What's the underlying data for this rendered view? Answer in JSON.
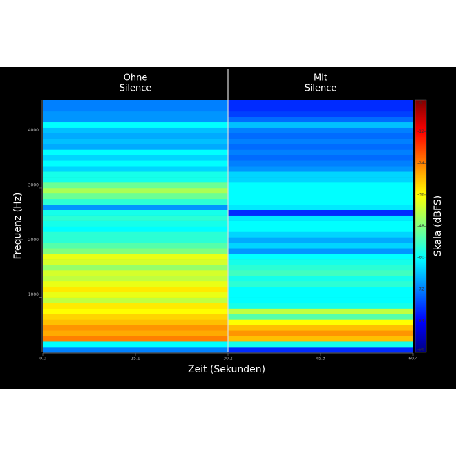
{
  "chart_data": {
    "type": "spectrogram",
    "x_label": "Zeit (Sekunden)",
    "y_label": "Frequenz (Hz)",
    "xlim": [
      0,
      60.4
    ],
    "xticks": [
      {
        "value": 0,
        "label": "0.0"
      },
      15.1,
      30.2,
      45.3,
      60.4
    ],
    "ylim": [
      0,
      4600
    ],
    "yticks": [
      1000,
      2000,
      3000,
      4000
    ],
    "bins": [
      0,
      100,
      200,
      300,
      400,
      500,
      600,
      700,
      800,
      900,
      1000,
      1100,
      1200,
      1300,
      1400,
      1500,
      1600,
      1700,
      1800,
      1900,
      2000,
      2100,
      2200,
      2300,
      2400,
      2500,
      2600,
      2700,
      2800,
      2900,
      3000,
      3100,
      3200,
      3300,
      3400,
      3500,
      3600,
      3700,
      3800,
      3900,
      4000,
      4100,
      4200,
      4300,
      4400,
      4500,
      4600
    ],
    "segments": [
      {
        "label": [
          "Ohne",
          "Silence"
        ],
        "x_range": [
          0,
          30.2
        ],
        "values": [
          -72,
          -60,
          -24,
          -28,
          -26,
          -30,
          -32,
          -36,
          -34,
          -42,
          -38,
          -34,
          -38,
          -42,
          -40,
          -46,
          -40,
          -38,
          -48,
          -52,
          -56,
          -56,
          -60,
          -58,
          -56,
          -58,
          -70,
          -56,
          -50,
          -44,
          -50,
          -58,
          -58,
          -64,
          -60,
          -64,
          -60,
          -68,
          -66,
          -68,
          -66,
          -60,
          -70,
          -70,
          -72,
          -72
        ]
      },
      {
        "label": [
          "Mit",
          "Silence"
        ],
        "x_range": [
          30.2,
          60.4
        ],
        "values": [
          -80,
          -58,
          -30,
          -26,
          -30,
          -36,
          -52,
          -42,
          -58,
          -60,
          -60,
          -60,
          -56,
          -58,
          -54,
          -56,
          -58,
          -60,
          -70,
          -64,
          -68,
          -64,
          -60,
          -60,
          -62,
          -80,
          -62,
          -60,
          -60,
          -60,
          -60,
          -64,
          -64,
          -70,
          -72,
          -74,
          -72,
          -74,
          -72,
          -74,
          -72,
          -66,
          -74,
          -78,
          -80,
          -80
        ]
      }
    ],
    "colorbar": {
      "label": "Skala (dBFS)",
      "lim": [
        -96,
        0
      ],
      "ticks": [
        0,
        -12,
        -24,
        -36,
        -48,
        -60,
        -72,
        -84,
        -96
      ],
      "colors": [
        "#800000",
        "#ff0000",
        "#ff8000",
        "#ffff00",
        "#80ff80",
        "#00ffff",
        "#0080ff",
        "#0000ff",
        "#000080"
      ]
    }
  }
}
